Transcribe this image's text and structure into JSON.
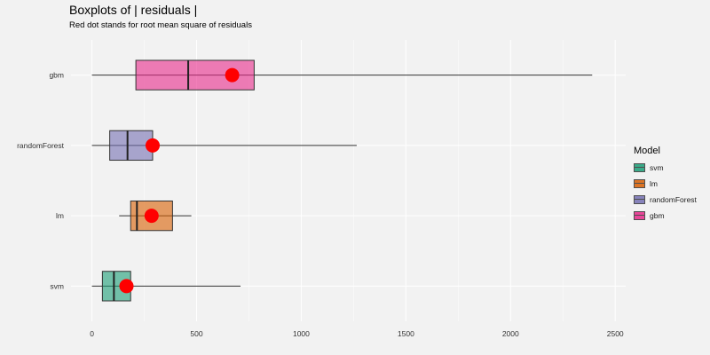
{
  "title": "Boxplots of | residuals |",
  "subtitle": "Red dot stands for root mean square of residuals",
  "legend": {
    "title": "Model",
    "items": [
      {
        "label": "svm",
        "color": "#1b9e77"
      },
      {
        "label": "lm",
        "color": "#d95f02"
      },
      {
        "label": "randomForest",
        "color": "#7570b3"
      },
      {
        "label": "gbm",
        "color": "#e7298a"
      }
    ]
  },
  "chart_data": {
    "type": "boxplot",
    "orientation": "horizontal",
    "x_ticks": [
      0,
      500,
      1000,
      1500,
      2000,
      2500
    ],
    "xlim": [
      -100,
      2550
    ],
    "grid": true,
    "legend_position": "right",
    "rms_color": "#ff0000",
    "series": [
      {
        "name": "gbm",
        "color": "#e7298a",
        "min": 0,
        "q1": 210,
        "median": 460,
        "q3": 775,
        "max": 2390,
        "rms": 670
      },
      {
        "name": "randomForest",
        "color": "#7570b3",
        "min": 0,
        "q1": 85,
        "median": 170,
        "q3": 290,
        "max": 1265,
        "rms": 290
      },
      {
        "name": "lm",
        "color": "#d95f02",
        "min": 130,
        "q1": 185,
        "median": 215,
        "q3": 385,
        "max": 475,
        "rms": 285
      },
      {
        "name": "svm",
        "color": "#1b9e77",
        "min": 0,
        "q1": 50,
        "median": 105,
        "q3": 185,
        "max": 710,
        "rms": 165
      }
    ]
  }
}
